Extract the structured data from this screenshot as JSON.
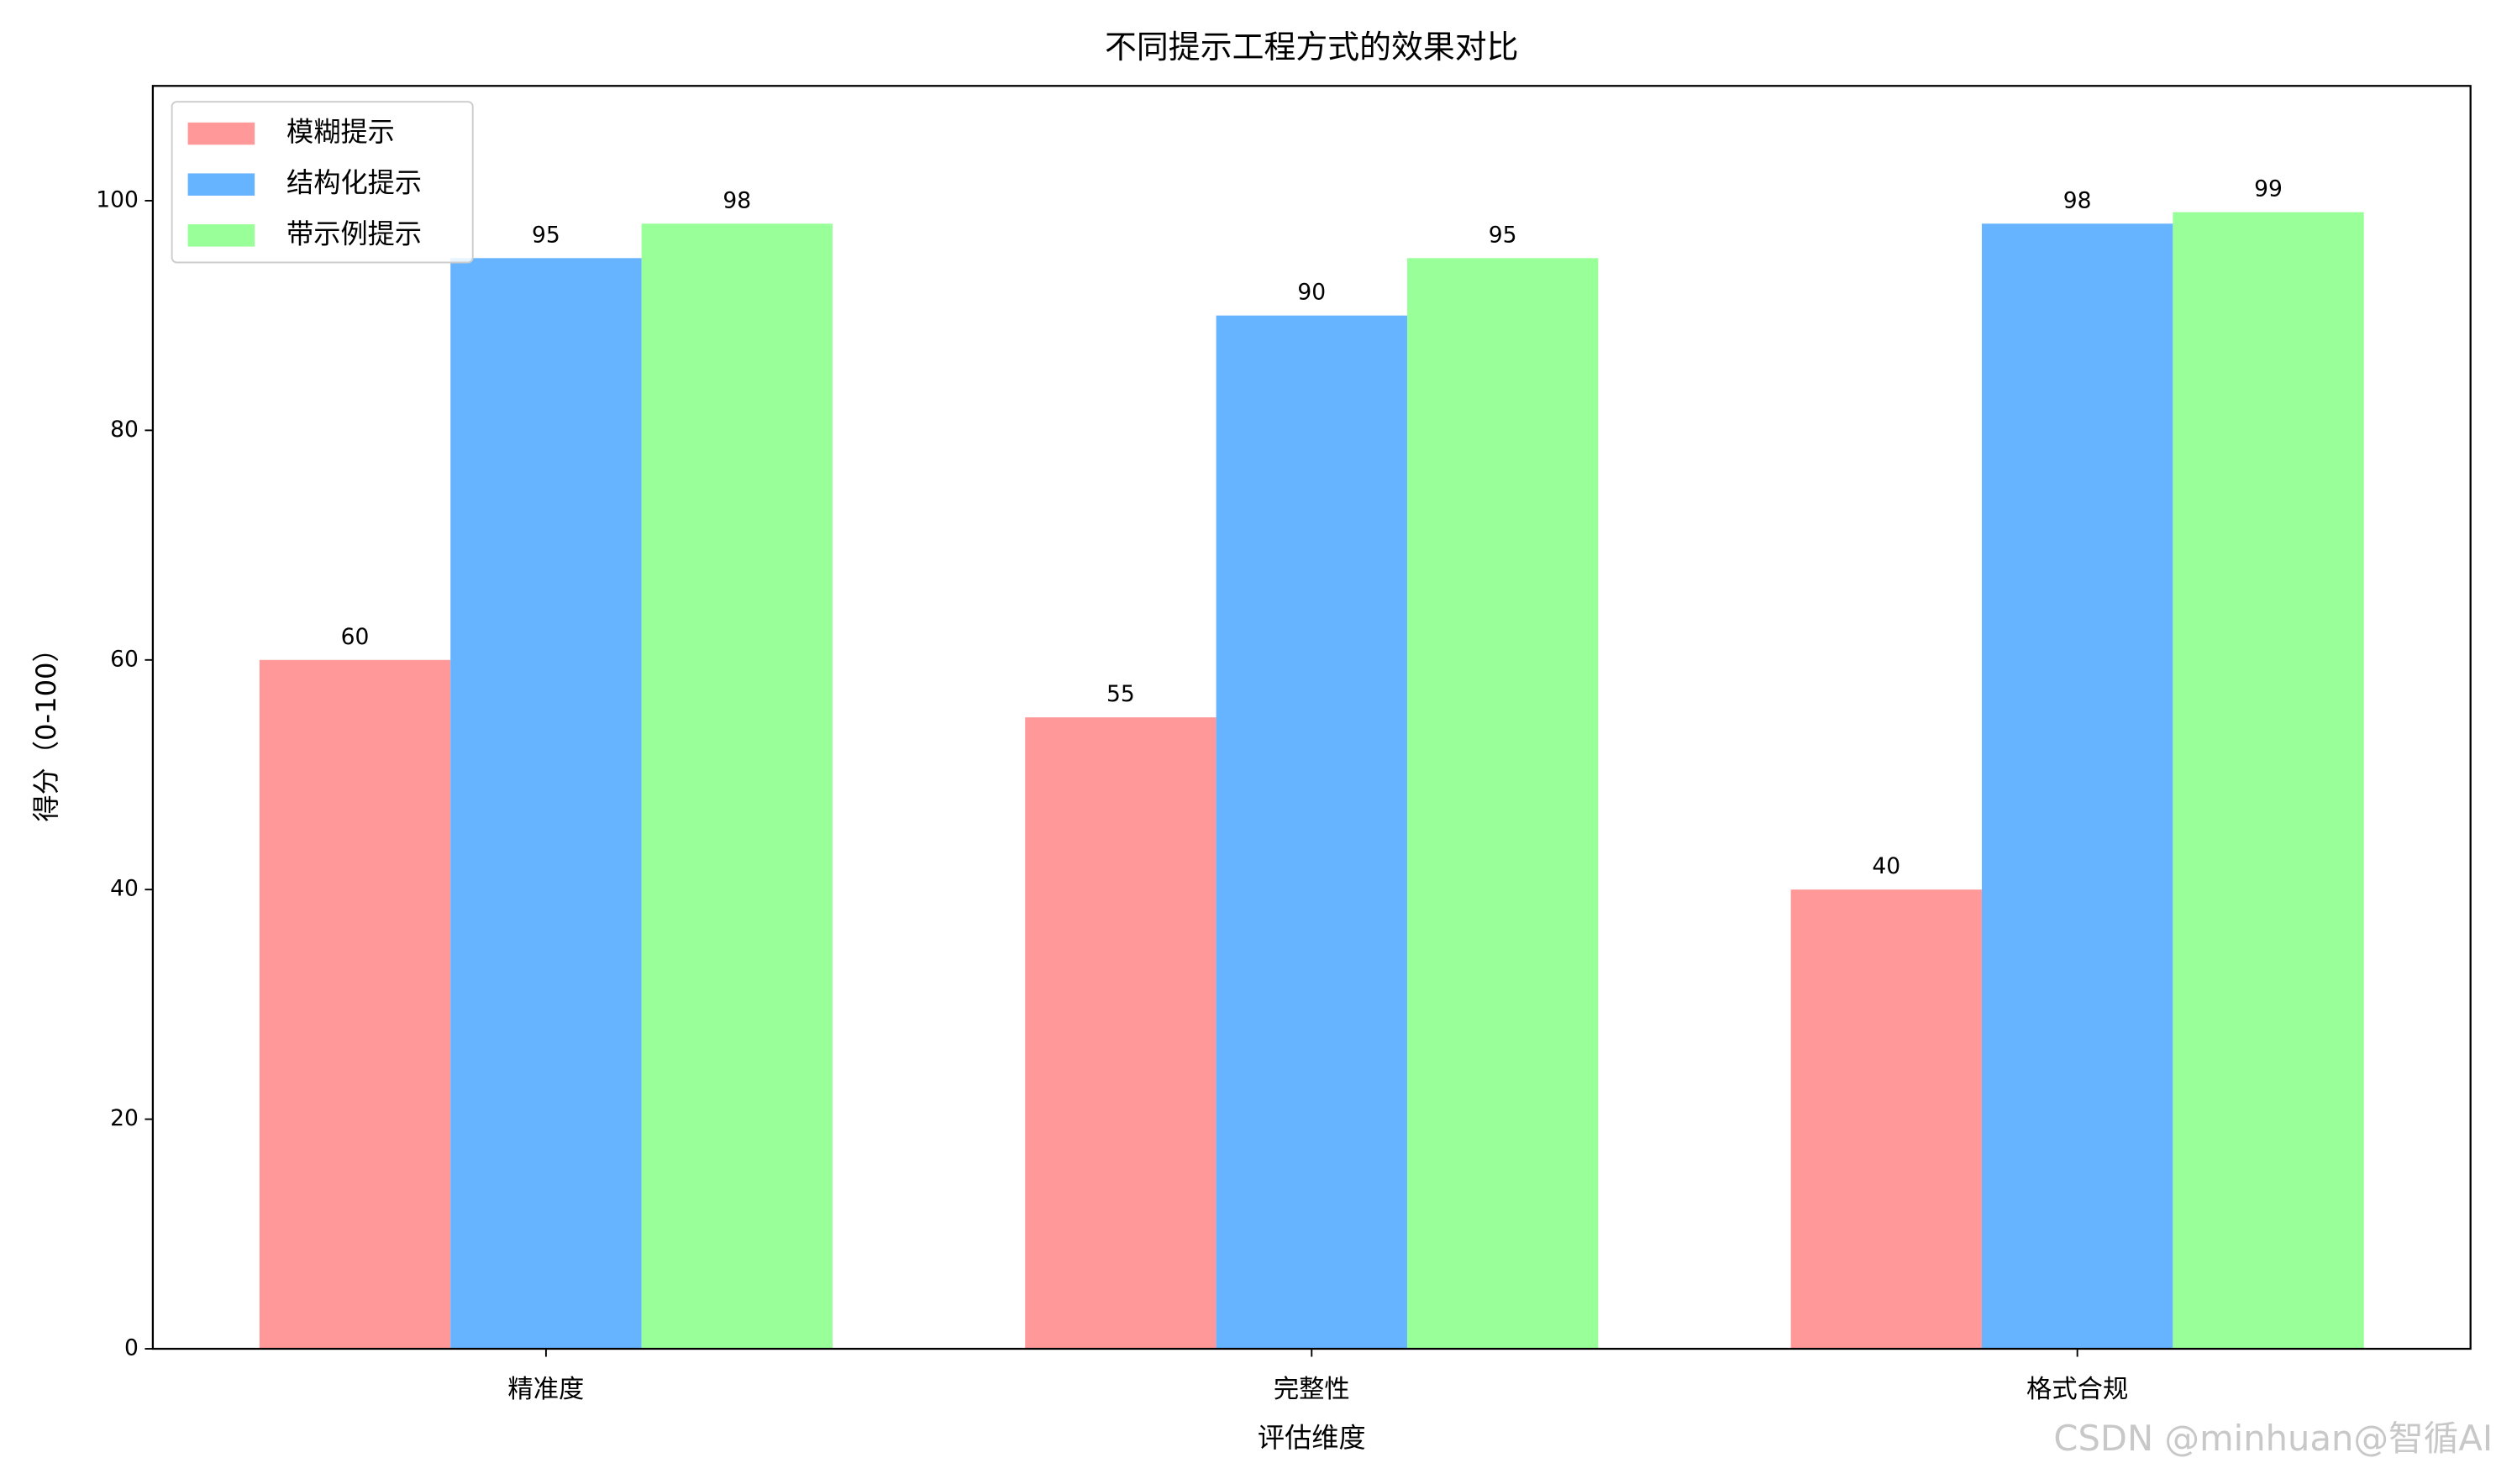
{
  "chart_data": {
    "type": "bar",
    "title": "不同提示工程方式的效果对比",
    "x_label": "评估维度",
    "y_label": "得分（0-100）",
    "categories": [
      "精准度",
      "完整性",
      "格式合规"
    ],
    "series": [
      {
        "name": "模糊提示",
        "color": "#ff9999",
        "values": [
          60,
          55,
          40
        ]
      },
      {
        "name": "结构化提示",
        "color": "#66b3ff",
        "values": [
          95,
          90,
          98
        ]
      },
      {
        "name": "带示例提示",
        "color": "#99ff99",
        "values": [
          98,
          95,
          99
        ]
      }
    ],
    "ylim": [
      0,
      110
    ],
    "yticks": [
      0,
      20,
      40,
      60,
      80,
      100
    ],
    "legend": "upper left",
    "grid": false,
    "watermark": "CSDN @minhuan@智循AI"
  }
}
